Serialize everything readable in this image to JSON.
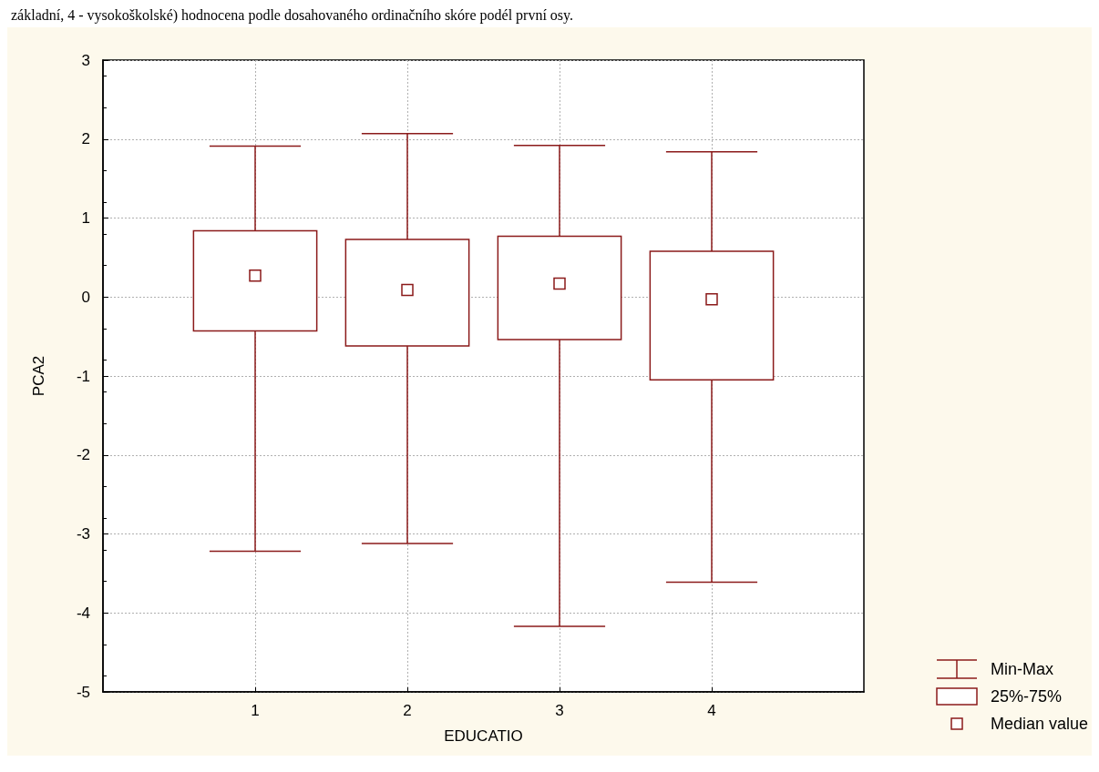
{
  "chart_data": {
    "type": "box",
    "categories": [
      "1",
      "2",
      "3",
      "4"
    ],
    "boxes": [
      {
        "low": -3.22,
        "q1": -0.43,
        "median": 0.27,
        "q3": 0.84,
        "high": 1.91
      },
      {
        "low": -3.12,
        "q1": -0.62,
        "median": 0.09,
        "q3": 0.73,
        "high": 2.07
      },
      {
        "low": -4.17,
        "q1": -0.54,
        "median": 0.17,
        "q3": 0.77,
        "high": 1.92
      },
      {
        "low": -3.61,
        "q1": -1.05,
        "median": -0.03,
        "q3": 0.58,
        "high": 1.84
      }
    ],
    "color": "#8b1a1a",
    "xlabel": "EDUCATIO",
    "ylabel": "PCA2",
    "ylim": [
      -5,
      3
    ],
    "yticks": [
      -5,
      -4,
      -3,
      -2,
      -1,
      0,
      1,
      2,
      3
    ],
    "grid": true,
    "marker": "square",
    "annotations": [
      "základní, 4 - vysokoškolské) hodnocena podle dosahovaného ordinačního skóre podél první osy.",
      "Min-Max",
      "25%-75%",
      "Median value"
    ]
  }
}
